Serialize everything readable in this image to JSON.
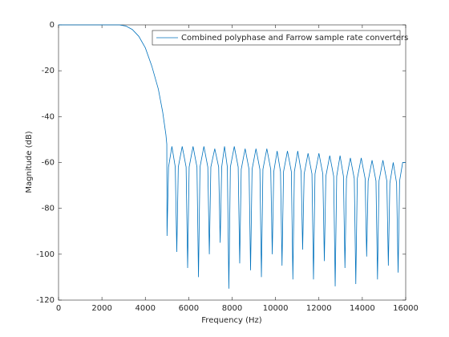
{
  "chart_data": {
    "type": "line",
    "xlabel": "Frequency (Hz)",
    "ylabel": "Magnitude (dB)",
    "xlim": [
      0,
      16000
    ],
    "ylim": [
      -120,
      0
    ],
    "xticks": [
      0,
      2000,
      4000,
      6000,
      8000,
      10000,
      12000,
      14000,
      16000
    ],
    "yticks": [
      0,
      -20,
      -40,
      -60,
      -80,
      -100,
      -120
    ],
    "legend": "upper right",
    "grid": false,
    "series": [
      {
        "name": "Combined polyphase and Farrow sample rate converters",
        "color": "#0072bd",
        "x": [
          0,
          1000,
          2000,
          2800,
          3100,
          3400,
          3700,
          4000,
          4300,
          4600,
          4800,
          4950,
          4990,
          5000,
          5070,
          5225,
          5380,
          5450,
          5520,
          5700,
          5880,
          5950,
          6020,
          6200,
          6380,
          6450,
          6520,
          6700,
          6880,
          6950,
          7020,
          7200,
          7380,
          7450,
          7520,
          7650,
          7780,
          7850,
          7920,
          8100,
          8280,
          8350,
          8420,
          8600,
          8780,
          8850,
          8920,
          9100,
          9280,
          9350,
          9420,
          9600,
          9780,
          9850,
          9920,
          10075,
          10230,
          10300,
          10370,
          10550,
          10730,
          10800,
          10870,
          11025,
          11180,
          11250,
          11320,
          11500,
          11680,
          11750,
          11820,
          12000,
          12180,
          12250,
          12320,
          12500,
          12680,
          12750,
          12820,
          12975,
          13130,
          13200,
          13270,
          13450,
          13630,
          13700,
          13770,
          13950,
          14130,
          14200,
          14270,
          14450,
          14630,
          14700,
          14770,
          14950,
          15130,
          15200,
          15270,
          15425,
          15580,
          15650,
          15720,
          15860,
          16000
        ],
        "values": [
          0,
          0,
          0,
          0,
          -0.5,
          -2,
          -5,
          -10,
          -18,
          -28,
          -38,
          -48,
          -52,
          -92,
          -62,
          -53,
          -62,
          -99,
          -62,
          -53,
          -62,
          -106,
          -62,
          -53,
          -62,
          -110,
          -62,
          -53,
          -62,
          -100,
          -62,
          -54,
          -62,
          -95,
          -62,
          -53,
          -62,
          -115,
          -62,
          -53,
          -62,
          -104,
          -63,
          -54,
          -63,
          -107,
          -63,
          -54,
          -63,
          -110,
          -63,
          -54,
          -63,
          -100,
          -64,
          -55,
          -64,
          -105,
          -64,
          -55,
          -64,
          -111,
          -64,
          -55,
          -64,
          -98,
          -65,
          -56,
          -65,
          -111,
          -65,
          -56,
          -65,
          -103,
          -66,
          -57,
          -66,
          -114,
          -66,
          -57,
          -66,
          -106,
          -67,
          -58,
          -67,
          -113,
          -67,
          -58,
          -67,
          -101,
          -68,
          -59,
          -68,
          -111,
          -68,
          -59,
          -68,
          -105,
          -69,
          -60,
          -69,
          -108,
          -68,
          -60,
          -60
        ]
      }
    ]
  }
}
